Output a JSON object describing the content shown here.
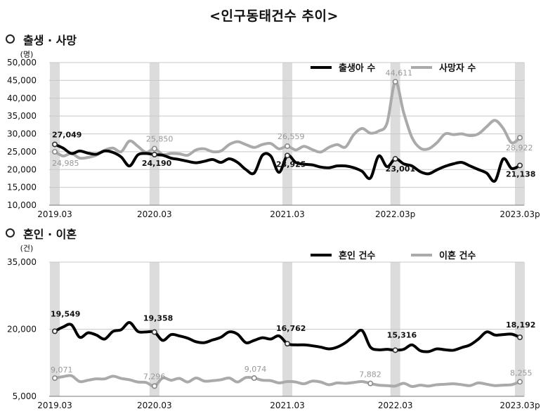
{
  "title": "<인구동태건수 추이>",
  "sections": [
    {
      "title": "출생 · 사망"
    },
    {
      "title": "혼인 · 이혼"
    }
  ],
  "chart_data": [
    {
      "type": "line",
      "unit": "(명)",
      "ylim": [
        10000,
        50000
      ],
      "yticks": [
        10000,
        15000,
        20000,
        25000,
        30000,
        35000,
        40000,
        45000,
        50000
      ],
      "ytick_labels": [
        "10,000",
        "15,000",
        "20,000",
        "25,000",
        "30,000",
        "35,000",
        "40,000",
        "45,000",
        "50,000"
      ],
      "xtick_labels": [
        "2019.03",
        "2020.03",
        "2021.03",
        "2022.03p",
        "2023.03p"
      ],
      "legend_position": "top-right",
      "series": [
        {
          "name": "출생아 수",
          "color": "#000000",
          "values": [
            27049,
            26000,
            24500,
            25200,
            24600,
            24300,
            25200,
            24800,
            23500,
            21000,
            24100,
            24500,
            24190,
            24000,
            23200,
            22800,
            22300,
            21900,
            22300,
            22800,
            22000,
            23000,
            22000,
            20000,
            19000,
            24000,
            23800,
            19200,
            23925,
            22000,
            21500,
            21300,
            20700,
            20500,
            21000,
            21000,
            20500,
            19500,
            17600,
            23800,
            20800,
            23001,
            21600,
            21000,
            19400,
            18800,
            19900,
            20900,
            21600,
            22000,
            21000,
            20000,
            19000,
            16800,
            23000,
            20300,
            21138
          ]
        },
        {
          "name": "사망자 수",
          "color": "#aaaaaa",
          "values": [
            24985,
            23800,
            24500,
            23200,
            23400,
            24000,
            25400,
            26000,
            25000,
            28000,
            26500,
            24800,
            25850,
            24200,
            24500,
            24400,
            24000,
            25500,
            25800,
            25000,
            25200,
            27000,
            27800,
            27000,
            26200,
            27000,
            27300,
            25800,
            26559,
            25500,
            26500,
            25600,
            24900,
            26200,
            27000,
            26300,
            29800,
            31500,
            30200,
            30800,
            33000,
            44611,
            36000,
            29000,
            26000,
            25800,
            27500,
            30000,
            29800,
            30000,
            29500,
            30000,
            32000,
            33800,
            31500,
            27500,
            28922
          ]
        }
      ],
      "annotations": [
        {
          "label": "27,049",
          "series": 0,
          "i": 0
        },
        {
          "label": "24,985",
          "series": 1,
          "i": 0
        },
        {
          "label": "25,850",
          "series": 1,
          "i": 12
        },
        {
          "label": "24,190",
          "series": 0,
          "i": 12
        },
        {
          "label": "26,559",
          "series": 1,
          "i": 28
        },
        {
          "label": "23,925",
          "series": 0,
          "i": 28
        },
        {
          "label": "44,611",
          "series": 1,
          "i": 41
        },
        {
          "label": "23,001",
          "series": 0,
          "i": 41
        },
        {
          "label": "28,922",
          "series": 1,
          "i": 56
        },
        {
          "label": "21,138",
          "series": 0,
          "i": 56
        }
      ]
    },
    {
      "type": "line",
      "unit": "(건)",
      "ylim": [
        5000,
        35000
      ],
      "yticks": [
        5000,
        20000,
        35000
      ],
      "ytick_labels": [
        "5,000",
        "20,000",
        "35,000"
      ],
      "xtick_labels": [
        "2019.03",
        "2020.03",
        "2021.03",
        "2022.03",
        "2023.03p"
      ],
      "legend_position": "top-right",
      "series": [
        {
          "name": "혼인 건수",
          "color": "#000000",
          "values": [
            19549,
            20500,
            21000,
            18200,
            19200,
            18700,
            17800,
            19500,
            19900,
            21500,
            19500,
            19400,
            19358,
            17500,
            18800,
            18500,
            18000,
            17200,
            17000,
            17600,
            18200,
            19400,
            18900,
            17000,
            17500,
            18100,
            17800,
            18500,
            16762,
            16500,
            16500,
            16300,
            16000,
            15600,
            16000,
            17000,
            18500,
            19700,
            16000,
            15400,
            15500,
            15316,
            15500,
            16500,
            15200,
            15000,
            15600,
            15400,
            15300,
            15900,
            16500,
            17800,
            19400,
            18700,
            18800,
            18900,
            18192
          ]
        },
        {
          "name": "이혼 건수",
          "color": "#aaaaaa",
          "values": [
            9071,
            9400,
            9600,
            8300,
            8600,
            8900,
            8900,
            9500,
            9000,
            8700,
            8200,
            8100,
            7296,
            9100,
            8600,
            9000,
            8200,
            9100,
            8400,
            8500,
            8700,
            9100,
            8200,
            9200,
            9074,
            8600,
            8500,
            8000,
            8300,
            8200,
            7800,
            8400,
            8200,
            7600,
            8000,
            7900,
            8100,
            8300,
            7882,
            7500,
            7400,
            7300,
            7900,
            7200,
            7500,
            7300,
            7600,
            7700,
            7800,
            7600,
            7400,
            8000,
            7700,
            7400,
            7500,
            7600,
            8255
          ]
        }
      ],
      "annotations": [
        {
          "label": "19,549",
          "series": 0,
          "i": 0
        },
        {
          "label": "9,071",
          "series": 1,
          "i": 0
        },
        {
          "label": "19,358",
          "series": 0,
          "i": 12
        },
        {
          "label": "7,296",
          "series": 1,
          "i": 12
        },
        {
          "label": "16,762",
          "series": 0,
          "i": 28
        },
        {
          "label": "9,074",
          "series": 1,
          "i": 24
        },
        {
          "label": "15,316",
          "series": 0,
          "i": 41
        },
        {
          "label": "7,882",
          "series": 1,
          "i": 38
        },
        {
          "label": "18,192",
          "series": 0,
          "i": 56
        },
        {
          "label": "8,255",
          "series": 1,
          "i": 56
        }
      ]
    }
  ]
}
